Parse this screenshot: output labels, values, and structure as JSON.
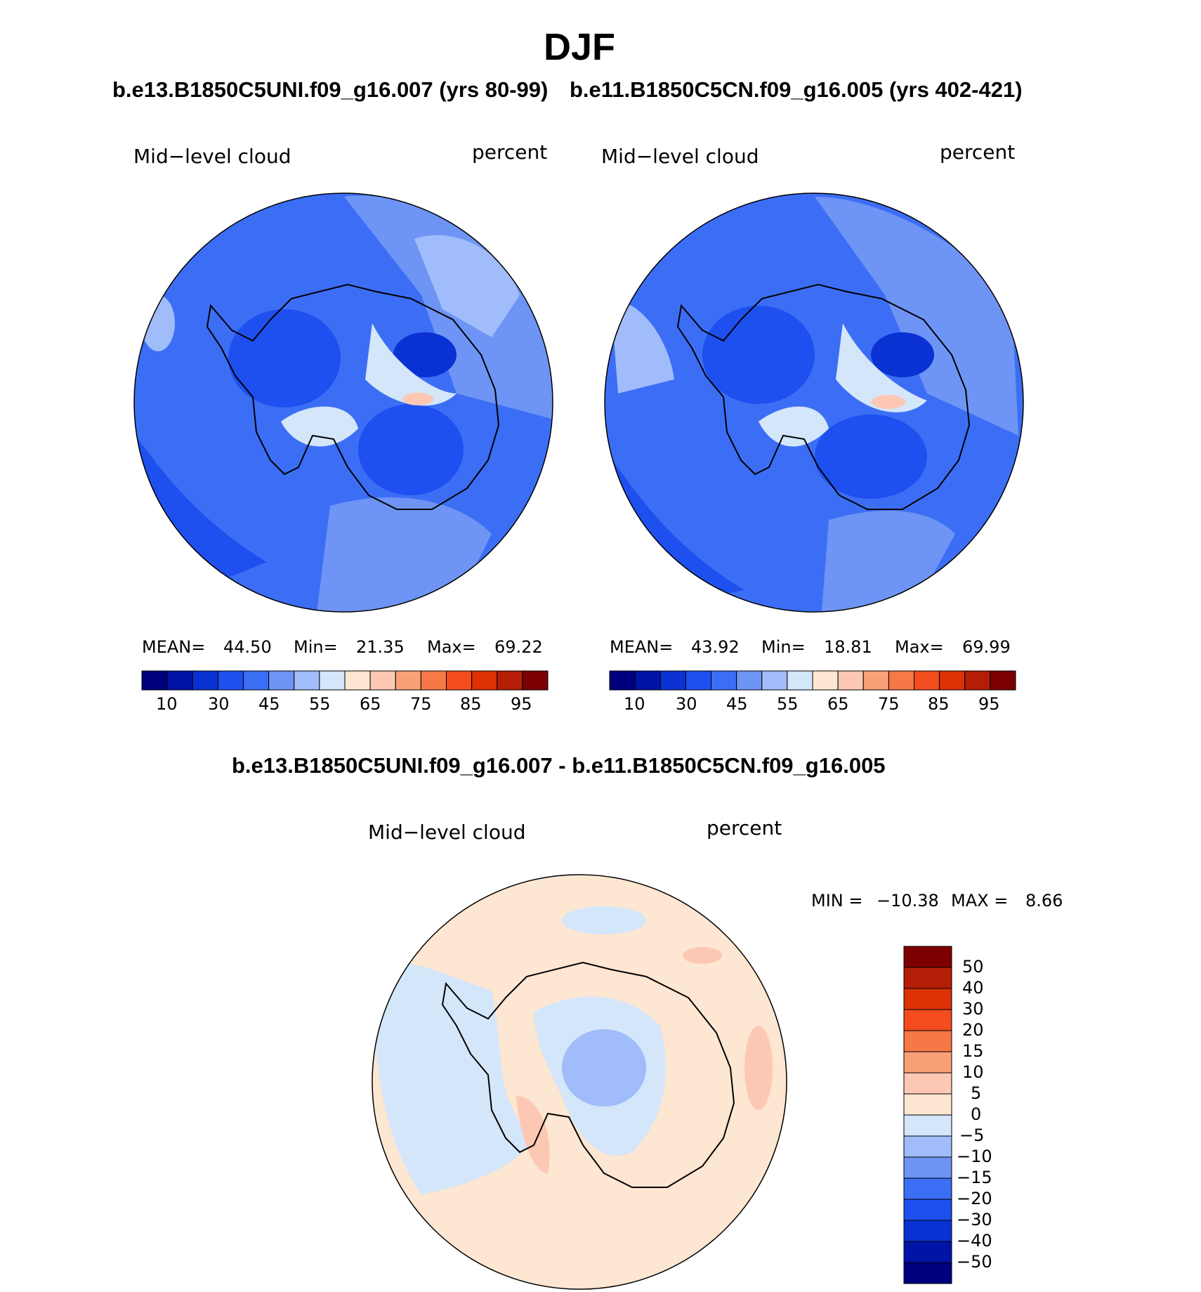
{
  "title": "DJF",
  "panels": [
    {
      "id": "p1",
      "subtitle": "b.e13.B1850C5UNI.f09_g16.007 (yrs 80-99)",
      "variable": "Mid−level cloud",
      "units": "percent",
      "stats": {
        "mean_label": "MEAN=",
        "mean": "44.50",
        "min_label": "Min=",
        "min": "21.35",
        "max_label": "Max=",
        "max": "69.22"
      }
    },
    {
      "id": "p2",
      "subtitle": "b.e11.B1850C5CN.f09_g16.005 (yrs 402-421)",
      "variable": "Mid−level cloud",
      "units": "percent",
      "stats": {
        "mean_label": "MEAN=",
        "mean": "43.92",
        "min_label": "Min=",
        "min": "18.81",
        "max_label": "Max=",
        "max": "69.99"
      }
    }
  ],
  "abs_colorbar": {
    "colors": [
      "#00007f",
      "#0014a8",
      "#0a32d2",
      "#1e50f0",
      "#3c6ef5",
      "#6e94f5",
      "#a0bcfa",
      "#d4e6fa",
      "#fde6d2",
      "#fcc8b4",
      "#f9a078",
      "#f67846",
      "#f44c1e",
      "#dc3206",
      "#b41e06",
      "#7d0000"
    ],
    "tick_labels": [
      "10",
      "30",
      "45",
      "55",
      "65",
      "75",
      "85",
      "95"
    ]
  },
  "diff_panel": {
    "subtitle": "b.e13.B1850C5UNI.f09_g16.007 - b.e11.B1850C5CN.f09_g16.005",
    "variable": "Mid−level cloud",
    "units": "percent",
    "minmax": {
      "min_label": "MIN =",
      "min": "−10.38",
      "max_label": "MAX =",
      "max": "8.66"
    },
    "colorbar": {
      "colors": [
        "#7d0000",
        "#b41e06",
        "#dc3206",
        "#f44c1e",
        "#f67846",
        "#f9a078",
        "#fcc8b4",
        "#fde6d2",
        "#d4e6fa",
        "#a0bcfa",
        "#6e94f5",
        "#3c6ef5",
        "#1e50f0",
        "#0a32d2",
        "#0014a8",
        "#00007f"
      ],
      "tick_labels": [
        "50",
        "40",
        "30",
        "20",
        "15",
        "10",
        "5",
        "0",
        "−5",
        "−10",
        "−15",
        "−20",
        "−30",
        "−40",
        "−50"
      ]
    }
  }
}
